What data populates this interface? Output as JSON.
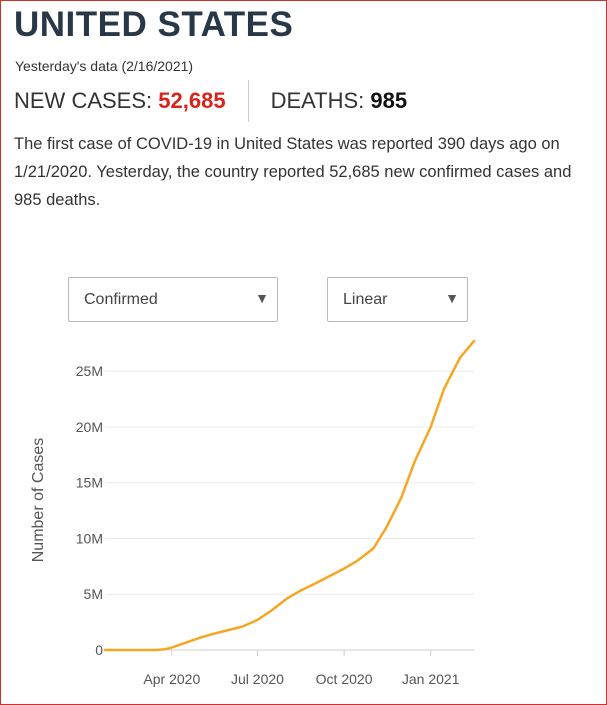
{
  "header": {
    "title": "UNITED STATES",
    "date_line": "Yesterday's data (2/16/2021)"
  },
  "stats": {
    "new_cases_label": "NEW CASES:",
    "new_cases_value": "52,685",
    "deaths_label": "DEATHS:",
    "deaths_value": "985"
  },
  "summary": {
    "part1": "The first case of ",
    "disease": "COVID-19",
    "part2": " in United States was reported 390 days ago on 1/21/2020. Yesterday, the country reported 52,685 new confirmed cases and 985 deaths."
  },
  "controls": {
    "metric_selected": "Confirmed",
    "scale_selected": "Linear"
  },
  "colors": {
    "accent_red": "#d9241c",
    "line": "#f5a623",
    "title": "#283848",
    "frame_border": "#d0322a"
  },
  "icons": {
    "dropdown": "caret-down-icon"
  },
  "chart_data": {
    "type": "line",
    "title": "",
    "xlabel": "",
    "ylabel": "Number of Cases",
    "x_scale": "time",
    "xlim": [
      "2020-01-21",
      "2021-02-16"
    ],
    "ylim": [
      0,
      27800000
    ],
    "grid": true,
    "legend": "none",
    "x_ticks": [
      {
        "label": "Apr 2020",
        "date": "2020-04-01"
      },
      {
        "label": "Jul 2020",
        "date": "2020-07-01"
      },
      {
        "label": "Oct 2020",
        "date": "2020-10-01"
      },
      {
        "label": "Jan 2021",
        "date": "2021-01-01"
      }
    ],
    "y_ticks": [
      {
        "label": "0",
        "value": 0
      },
      {
        "label": "5M",
        "value": 5000000
      },
      {
        "label": "10M",
        "value": 10000000
      },
      {
        "label": "15M",
        "value": 15000000
      },
      {
        "label": "20M",
        "value": 20000000
      },
      {
        "label": "25M",
        "value": 25000000
      }
    ],
    "series": [
      {
        "color": "#f5a623",
        "points": [
          {
            "date": "2020-01-21",
            "value": 1
          },
          {
            "date": "2020-03-01",
            "value": 30
          },
          {
            "date": "2020-03-15",
            "value": 3500
          },
          {
            "date": "2020-03-25",
            "value": 68000
          },
          {
            "date": "2020-04-01",
            "value": 215000
          },
          {
            "date": "2020-04-15",
            "value": 640000
          },
          {
            "date": "2020-05-01",
            "value": 1100000
          },
          {
            "date": "2020-05-15",
            "value": 1450000
          },
          {
            "date": "2020-06-01",
            "value": 1800000
          },
          {
            "date": "2020-06-15",
            "value": 2100000
          },
          {
            "date": "2020-07-01",
            "value": 2700000
          },
          {
            "date": "2020-07-15",
            "value": 3500000
          },
          {
            "date": "2020-08-01",
            "value": 4600000
          },
          {
            "date": "2020-08-15",
            "value": 5300000
          },
          {
            "date": "2020-09-01",
            "value": 6000000
          },
          {
            "date": "2020-09-15",
            "value": 6600000
          },
          {
            "date": "2020-10-01",
            "value": 7300000
          },
          {
            "date": "2020-10-15",
            "value": 8000000
          },
          {
            "date": "2020-11-01",
            "value": 9100000
          },
          {
            "date": "2020-11-15",
            "value": 11000000
          },
          {
            "date": "2020-12-01",
            "value": 13700000
          },
          {
            "date": "2020-12-15",
            "value": 16900000
          },
          {
            "date": "2021-01-01",
            "value": 20000000
          },
          {
            "date": "2021-01-15",
            "value": 23400000
          },
          {
            "date": "2021-02-01",
            "value": 26200000
          },
          {
            "date": "2021-02-16",
            "value": 27700000
          }
        ]
      }
    ]
  }
}
